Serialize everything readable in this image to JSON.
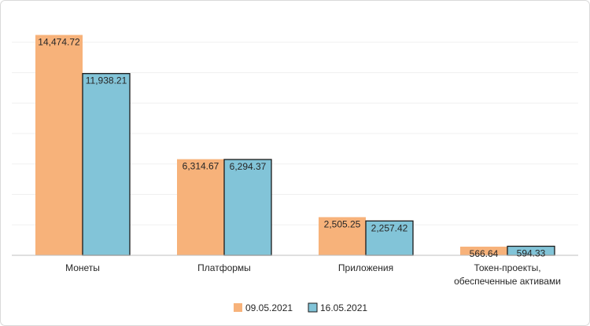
{
  "chart_data": {
    "type": "bar",
    "categories": [
      [
        "Монеты"
      ],
      [
        "Платформы"
      ],
      [
        "Приложения"
      ],
      [
        "Токен-проекты,",
        "обеспеченные активами"
      ]
    ],
    "series": [
      {
        "name": "09.05.2021",
        "color": "#f7b27a",
        "values": [
          14474.72,
          6314.67,
          2505.25,
          566.64
        ],
        "labels": [
          "14,474.72",
          "6,314.67",
          "2,505.25",
          "566.64"
        ]
      },
      {
        "name": "16.05.2021",
        "color": "#82c4d8",
        "values": [
          11938.21,
          6294.37,
          2257.42,
          594.33
        ],
        "labels": [
          "11,938.21",
          "6,294.37",
          "2,257.42",
          "594.33"
        ]
      }
    ],
    "ylim": [
      0,
      14500
    ],
    "grid": true,
    "legend": "bottom-center"
  }
}
